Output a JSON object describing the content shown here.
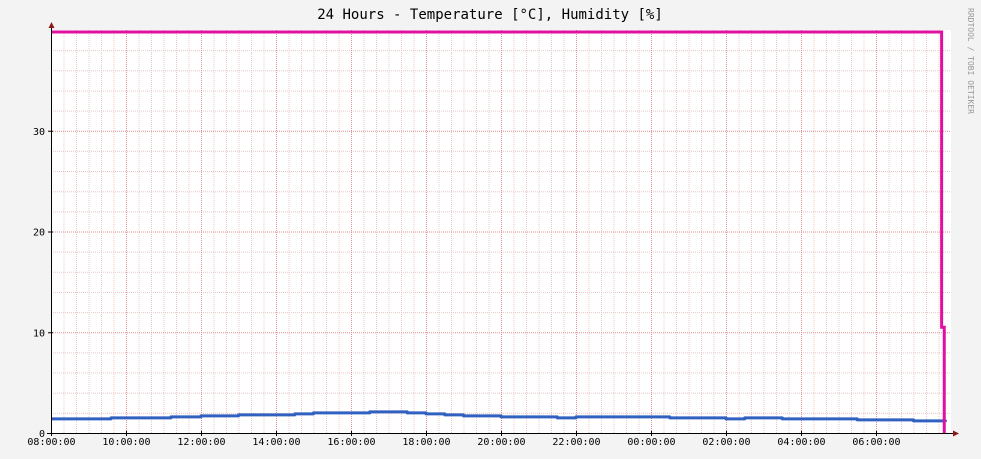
{
  "chart_data": {
    "type": "line",
    "title": "24 Hours - Temperature [°C], Humidity [%]",
    "watermark": "RRDTOOL / TOBI OETIKER",
    "xlabel": "",
    "ylabel": "",
    "x_ticks": [
      "08:00:00",
      "10:00:00",
      "12:00:00",
      "14:00:00",
      "16:00:00",
      "18:00:00",
      "20:00:00",
      "22:00:00",
      "00:00:00",
      "02:00:00",
      "04:00:00",
      "06:00:00"
    ],
    "x_range_hours": [
      0,
      24
    ],
    "ylim": [
      0,
      40
    ],
    "y_ticks": [
      0,
      10,
      20,
      30
    ],
    "grid": true,
    "background_color": "#f3f3f3",
    "plot_background_color": "#ffffff",
    "series": [
      {
        "color": "#3060c0",
        "x": [
          0,
          0.4,
          0.8,
          1.2,
          1.6,
          2.0,
          2.4,
          2.8,
          3.2,
          3.6,
          4.0,
          4.5,
          5.0,
          5.5,
          6.0,
          6.5,
          7.0,
          7.5,
          8.0,
          8.5,
          9.0,
          9.5,
          10.0,
          10.5,
          11.0,
          11.5,
          12.0,
          12.5,
          13.0,
          13.5,
          14.0,
          14.5,
          15.0,
          15.5,
          16.0,
          16.5,
          17.0,
          17.5,
          18.0,
          18.5,
          19.0,
          19.5,
          20.0,
          20.5,
          21.0,
          21.5,
          22.0,
          22.5,
          23.0,
          23.5,
          23.85
        ],
        "values": [
          1.4,
          1.4,
          1.4,
          1.4,
          1.5,
          1.5,
          1.5,
          1.5,
          1.6,
          1.6,
          1.7,
          1.7,
          1.8,
          1.8,
          1.8,
          1.9,
          2.0,
          2.0,
          2.0,
          2.1,
          2.1,
          2.0,
          1.9,
          1.8,
          1.7,
          1.7,
          1.6,
          1.6,
          1.6,
          1.5,
          1.6,
          1.6,
          1.6,
          1.6,
          1.6,
          1.5,
          1.5,
          1.5,
          1.4,
          1.5,
          1.5,
          1.4,
          1.4,
          1.4,
          1.4,
          1.3,
          1.3,
          1.3,
          1.2,
          1.2,
          1.1
        ]
      },
      {
        "color": "#e010a0",
        "x": [
          0,
          23.75,
          23.75,
          23.82,
          23.82
        ],
        "values": [
          39.8,
          39.8,
          10.5,
          10.5,
          0
        ]
      }
    ]
  }
}
